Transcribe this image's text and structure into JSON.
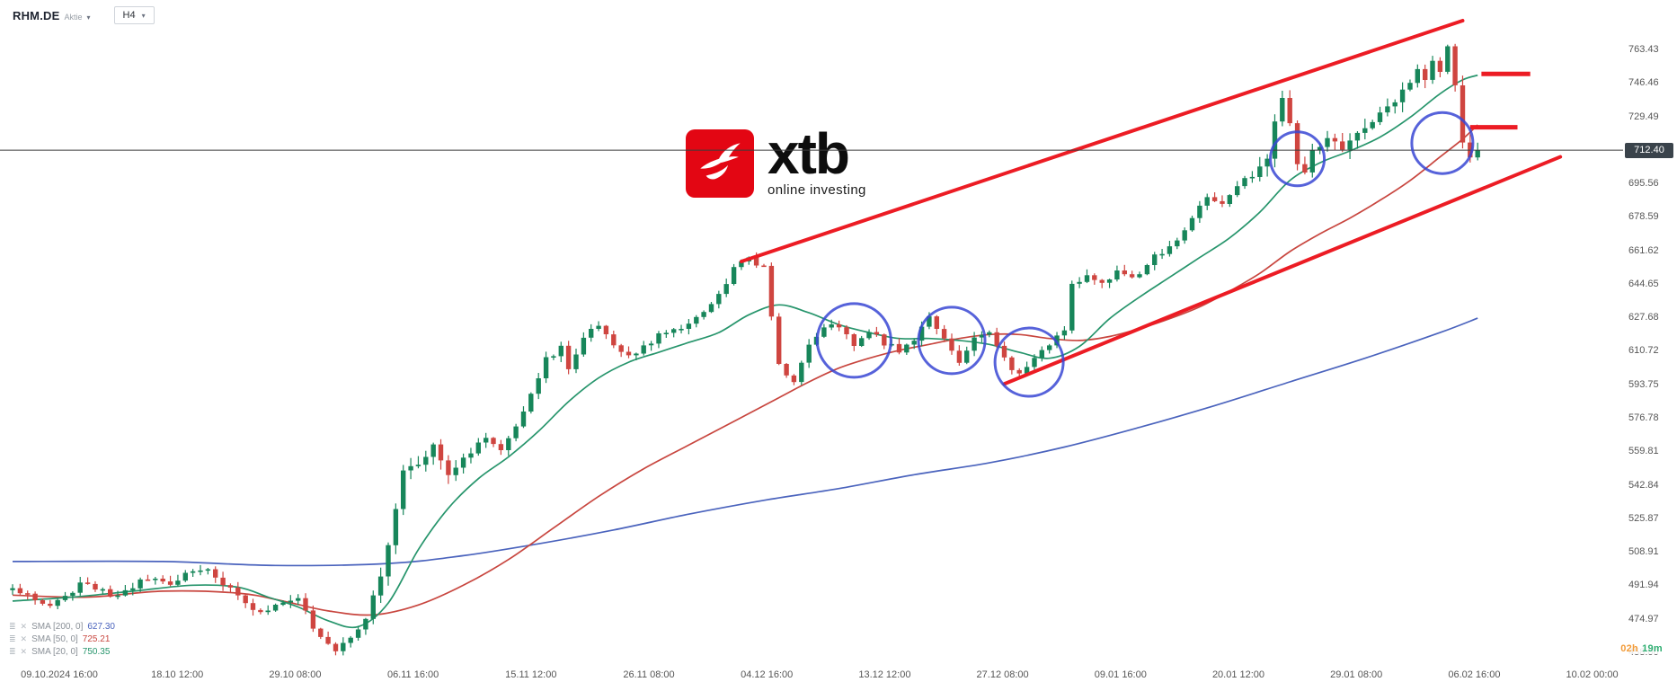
{
  "header": {
    "symbol": "RHM.DE",
    "instrument_type": "Aktie",
    "timeframe": "H4"
  },
  "watermark": {
    "brand": "xtb",
    "tagline": "online investing",
    "brand_color": "#e30613"
  },
  "legend": {
    "items": [
      {
        "label": "SMA [200, 0]",
        "value": "627.30",
        "color": "#4a63bd"
      },
      {
        "label": "SMA [50, 0]",
        "value": "725.21",
        "color": "#c8463f"
      },
      {
        "label": "SMA [20, 0]",
        "value": "750.35",
        "color": "#27956c"
      }
    ]
  },
  "countdown": {
    "hours": "02h",
    "minutes": "19m",
    "hours_color": "#f29b38",
    "minutes_color": "#2fae72"
  },
  "price_badge": "712.40",
  "chart_data": {
    "type": "candlestick",
    "symbol": "RHM.DE",
    "timeframe": "H4",
    "current_price": 712.4,
    "y_axis": {
      "min": 458.0,
      "max": 763.43,
      "tick_step": 16.97,
      "tick_labels": [
        "763.43",
        "746.46",
        "729.49",
        "695.56",
        "678.59",
        "661.62",
        "644.65",
        "627.68",
        "610.72",
        "593.75",
        "576.78",
        "559.81",
        "542.84",
        "525.87",
        "508.91",
        "491.94",
        "474.97",
        "458.00"
      ]
    },
    "x_labels": [
      "09.10.2024 16:00",
      "18.10 12:00",
      "29.10 08:00",
      "06.11 16:00",
      "15.11 12:00",
      "26.11 08:00",
      "04.12 16:00",
      "13.12 12:00",
      "27.12 08:00",
      "09.01 16:00",
      "20.01 12:00",
      "29.01 08:00",
      "06.02 16:00",
      "10.02 00:00"
    ],
    "candle_count": 196,
    "close_keyframes": [
      [
        0,
        490
      ],
      [
        3,
        485
      ],
      [
        5,
        481
      ],
      [
        7,
        486
      ],
      [
        9,
        493
      ],
      [
        12,
        489
      ],
      [
        14,
        486
      ],
      [
        16,
        492
      ],
      [
        18,
        495
      ],
      [
        21,
        492
      ],
      [
        23,
        498
      ],
      [
        26,
        500
      ],
      [
        28,
        493
      ],
      [
        30,
        487
      ],
      [
        32,
        481
      ],
      [
        34,
        478
      ],
      [
        36,
        484
      ],
      [
        38,
        487
      ],
      [
        40,
        470
      ],
      [
        42,
        463
      ],
      [
        43,
        460
      ],
      [
        45,
        466
      ],
      [
        47,
        476
      ],
      [
        49,
        497
      ],
      [
        50,
        511
      ],
      [
        52,
        549
      ],
      [
        54,
        553
      ],
      [
        56,
        564
      ],
      [
        58,
        549
      ],
      [
        60,
        557
      ],
      [
        62,
        563
      ],
      [
        63,
        567
      ],
      [
        65,
        560
      ],
      [
        67,
        574
      ],
      [
        69,
        589
      ],
      [
        71,
        607
      ],
      [
        73,
        612
      ],
      [
        74,
        602
      ],
      [
        76,
        617
      ],
      [
        78,
        624
      ],
      [
        80,
        612
      ],
      [
        82,
        607
      ],
      [
        84,
        613
      ],
      [
        86,
        618
      ],
      [
        88,
        621
      ],
      [
        90,
        624
      ],
      [
        91,
        627
      ],
      [
        93,
        634
      ],
      [
        94,
        639
      ],
      [
        96,
        652
      ],
      [
        98,
        657
      ],
      [
        100,
        654
      ],
      [
        102,
        603
      ],
      [
        104,
        595
      ],
      [
        106,
        614
      ],
      [
        108,
        622
      ],
      [
        110,
        624
      ],
      [
        112,
        613
      ],
      [
        114,
        621
      ],
      [
        116,
        615
      ],
      [
        118,
        611
      ],
      [
        120,
        617
      ],
      [
        122,
        629
      ],
      [
        124,
        617
      ],
      [
        126,
        605
      ],
      [
        128,
        617
      ],
      [
        130,
        621
      ],
      [
        132,
        606
      ],
      [
        134,
        598
      ],
      [
        136,
        607
      ],
      [
        138,
        614
      ],
      [
        140,
        621
      ],
      [
        141,
        644
      ],
      [
        143,
        650
      ],
      [
        145,
        644
      ],
      [
        147,
        651
      ],
      [
        149,
        647
      ],
      [
        151,
        655
      ],
      [
        153,
        661
      ],
      [
        155,
        667
      ],
      [
        157,
        678
      ],
      [
        159,
        688
      ],
      [
        161,
        684
      ],
      [
        163,
        694
      ],
      [
        165,
        700
      ],
      [
        167,
        709
      ],
      [
        168,
        727
      ],
      [
        169,
        739
      ],
      [
        170,
        726
      ],
      [
        171,
        706
      ],
      [
        172,
        701
      ],
      [
        173,
        712
      ],
      [
        175,
        718
      ],
      [
        177,
        714
      ],
      [
        179,
        722
      ],
      [
        181,
        727
      ],
      [
        183,
        734
      ],
      [
        185,
        742
      ],
      [
        187,
        752
      ],
      [
        188,
        747
      ],
      [
        189,
        758
      ],
      [
        190,
        752
      ],
      [
        191,
        764
      ],
      [
        192,
        744
      ],
      [
        193,
        716
      ],
      [
        194,
        710
      ],
      [
        195,
        712.4
      ]
    ],
    "sma": [
      {
        "period": 200,
        "color": "#4a63bd",
        "current": 627.3,
        "keyframes": [
          [
            0,
            504
          ],
          [
            20,
            504
          ],
          [
            35,
            502
          ],
          [
            50,
            503
          ],
          [
            60,
            507
          ],
          [
            70,
            513
          ],
          [
            80,
            520
          ],
          [
            90,
            528
          ],
          [
            100,
            535
          ],
          [
            110,
            541
          ],
          [
            120,
            548
          ],
          [
            130,
            554
          ],
          [
            140,
            562
          ],
          [
            150,
            572
          ],
          [
            160,
            583
          ],
          [
            170,
            595
          ],
          [
            180,
            607
          ],
          [
            190,
            620
          ],
          [
            195,
            627.3
          ]
        ]
      },
      {
        "period": 50,
        "color": "#c8463f",
        "current": 725.21,
        "keyframes": [
          [
            0,
            487
          ],
          [
            10,
            486
          ],
          [
            20,
            489
          ],
          [
            30,
            488
          ],
          [
            36,
            484
          ],
          [
            42,
            479
          ],
          [
            48,
            477
          ],
          [
            54,
            482
          ],
          [
            60,
            492
          ],
          [
            66,
            505
          ],
          [
            72,
            521
          ],
          [
            78,
            537
          ],
          [
            84,
            551
          ],
          [
            90,
            563
          ],
          [
            96,
            575
          ],
          [
            102,
            587
          ],
          [
            106,
            595
          ],
          [
            110,
            602
          ],
          [
            114,
            607
          ],
          [
            118,
            611
          ],
          [
            122,
            614
          ],
          [
            126,
            617
          ],
          [
            130,
            619
          ],
          [
            134,
            619
          ],
          [
            138,
            617
          ],
          [
            142,
            616
          ],
          [
            146,
            618
          ],
          [
            150,
            622
          ],
          [
            154,
            627
          ],
          [
            158,
            633
          ],
          [
            162,
            641
          ],
          [
            166,
            650
          ],
          [
            170,
            661
          ],
          [
            174,
            670
          ],
          [
            178,
            678
          ],
          [
            182,
            687
          ],
          [
            186,
            697
          ],
          [
            190,
            709
          ],
          [
            193,
            718
          ],
          [
            195,
            725.21
          ]
        ]
      },
      {
        "period": 20,
        "color": "#27956c",
        "current": 750.35,
        "keyframes": [
          [
            0,
            484
          ],
          [
            8,
            486
          ],
          [
            16,
            489
          ],
          [
            24,
            492
          ],
          [
            30,
            491
          ],
          [
            34,
            486
          ],
          [
            38,
            481
          ],
          [
            42,
            474
          ],
          [
            46,
            471
          ],
          [
            50,
            483
          ],
          [
            54,
            510
          ],
          [
            58,
            531
          ],
          [
            62,
            546
          ],
          [
            66,
            557
          ],
          [
            70,
            570
          ],
          [
            74,
            585
          ],
          [
            78,
            597
          ],
          [
            82,
            605
          ],
          [
            86,
            610
          ],
          [
            90,
            615
          ],
          [
            94,
            620
          ],
          [
            98,
            629
          ],
          [
            102,
            634
          ],
          [
            106,
            630
          ],
          [
            110,
            624
          ],
          [
            114,
            620
          ],
          [
            118,
            617
          ],
          [
            122,
            617
          ],
          [
            126,
            616
          ],
          [
            130,
            614
          ],
          [
            134,
            610
          ],
          [
            138,
            607
          ],
          [
            142,
            613
          ],
          [
            146,
            627
          ],
          [
            150,
            638
          ],
          [
            154,
            648
          ],
          [
            158,
            658
          ],
          [
            162,
            668
          ],
          [
            166,
            681
          ],
          [
            170,
            697
          ],
          [
            174,
            706
          ],
          [
            178,
            712
          ],
          [
            182,
            719
          ],
          [
            186,
            729
          ],
          [
            190,
            741
          ],
          [
            193,
            748
          ],
          [
            195,
            750.35
          ]
        ]
      }
    ],
    "colors": {
      "up": "#17865a",
      "down": "#cf4540"
    },
    "annotations": {
      "channel_color": "#ec1c24",
      "circle_color": "#3846d4",
      "channel_upper": {
        "from": [
          97,
          656
        ],
        "to": [
          193,
          778
        ]
      },
      "channel_lower": {
        "from": [
          132,
          594
        ],
        "to": [
          206,
          709
        ]
      },
      "resistance_segments": [
        {
          "price": 751,
          "from_i": 195.5,
          "to_i": 202
        },
        {
          "price": 724,
          "from_i": 194,
          "to_i": 200.3
        }
      ],
      "circles": [
        {
          "i": 112,
          "price": 616,
          "r": 41
        },
        {
          "i": 125,
          "price": 616,
          "r": 37
        },
        {
          "i": 135.3,
          "price": 605,
          "r": 38
        },
        {
          "i": 171,
          "price": 708,
          "r": 30
        },
        {
          "i": 190.3,
          "price": 716,
          "r": 34
        }
      ]
    }
  }
}
